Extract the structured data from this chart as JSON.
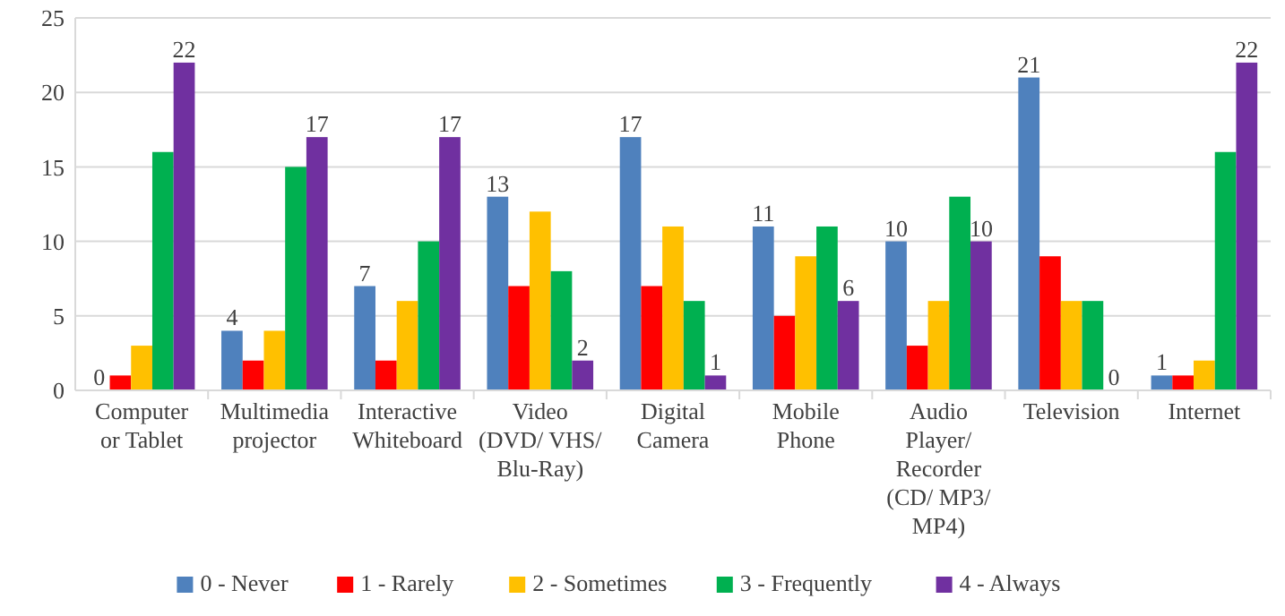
{
  "chart_data": {
    "type": "bar",
    "categories": [
      "Computer or Tablet",
      "Multimedia projector",
      "Interactive Whiteboard",
      "Video (DVD/ VHS/ Blu-Ray)",
      "Digital Camera",
      "Mobile Phone",
      "Audio Player/ Recorder (CD/ MP3/ MP4)",
      "Television",
      "Internet"
    ],
    "series": [
      {
        "name": "0 - Never",
        "color": "#4f81bd",
        "values": [
          0,
          4,
          7,
          13,
          17,
          11,
          10,
          21,
          1
        ],
        "value_labels": [
          "0",
          "4",
          "7",
          "13",
          "17",
          "11",
          "10",
          "21",
          "1"
        ]
      },
      {
        "name": "1 - Rarely",
        "color": "#ff0000",
        "values": [
          1,
          2,
          2,
          7,
          7,
          5,
          3,
          9,
          1
        ]
      },
      {
        "name": "2 - Sometimes",
        "color": "#ffc000",
        "values": [
          3,
          4,
          6,
          12,
          11,
          9,
          6,
          6,
          2
        ]
      },
      {
        "name": "3 - Frequently",
        "color": "#00b050",
        "values": [
          16,
          15,
          10,
          8,
          6,
          11,
          13,
          6,
          16
        ]
      },
      {
        "name": "4 - Always",
        "color": "#7030a0",
        "values": [
          22,
          17,
          17,
          2,
          1,
          6,
          10,
          0,
          22
        ],
        "value_labels": [
          "22",
          "17",
          "17",
          "2",
          "1",
          "6",
          "10",
          "0",
          "22"
        ]
      }
    ],
    "ylim": [
      0,
      25
    ],
    "yticks": [
      0,
      5,
      10,
      15,
      20,
      25
    ],
    "grid": "y",
    "legend": "bottom"
  }
}
